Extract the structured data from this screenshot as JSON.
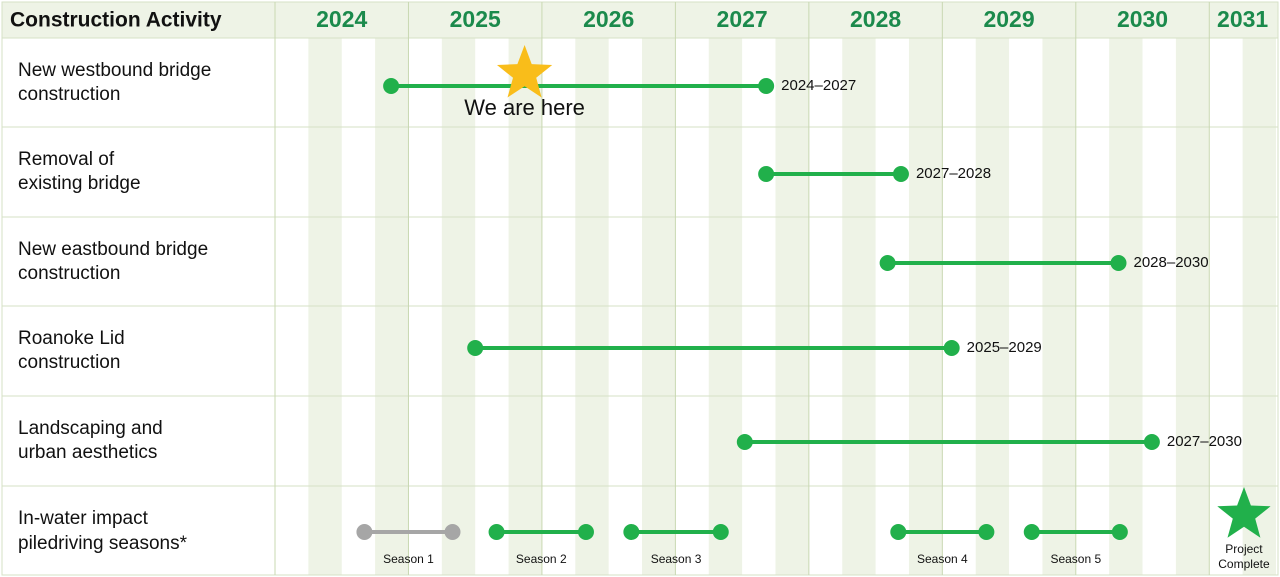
{
  "chart_data": {
    "type": "timeline",
    "header": "Construction Activity",
    "xlim": [
      2024,
      2031.5
    ],
    "xticks": [
      2024,
      2025,
      2026,
      2027,
      2028,
      2029,
      2030,
      2031
    ],
    "tasks": [
      {
        "name": "New westbound bridge\nconstruction",
        "start": 2024.87,
        "end": 2027.68,
        "label": "2024–2027",
        "color": "#21b04b"
      },
      {
        "name": "Removal of\nexisting bridge",
        "start": 2027.68,
        "end": 2028.69,
        "label": "2027–2028",
        "color": "#21b04b"
      },
      {
        "name": "New eastbound bridge\nconstruction",
        "start": 2028.59,
        "end": 2030.32,
        "label": "2028–2030",
        "color": "#21b04b"
      },
      {
        "name": "Roanoke Lid\nconstruction",
        "start": 2025.5,
        "end": 2029.07,
        "label": "2025–2029",
        "color": "#21b04b"
      },
      {
        "name": "Landscaping and\nurban aesthetics",
        "start": 2027.52,
        "end": 2030.57,
        "label": "2027–2030",
        "color": "#21b04b"
      }
    ],
    "seasons_row": {
      "name": "In-water impact\npiledriving seasons*",
      "seasons": [
        {
          "name": "Season 1",
          "start": 2024.67,
          "end": 2025.33,
          "color": "#a6a6a6"
        },
        {
          "name": "Season 2",
          "start": 2025.66,
          "end": 2026.33,
          "color": "#21b04b"
        },
        {
          "name": "Season 3",
          "start": 2026.67,
          "end": 2027.34,
          "color": "#21b04b"
        },
        {
          "name": "Season 4",
          "start": 2028.67,
          "end": 2029.33,
          "color": "#21b04b"
        },
        {
          "name": "Season 5",
          "start": 2029.67,
          "end": 2030.33,
          "color": "#21b04b"
        }
      ]
    },
    "now_marker": {
      "label": "We are here",
      "x": 2025.87,
      "color": "#f9bd1a"
    },
    "end_marker": {
      "label": "Project\nComplete",
      "x": 2031.26,
      "color": "#21b04b"
    }
  }
}
